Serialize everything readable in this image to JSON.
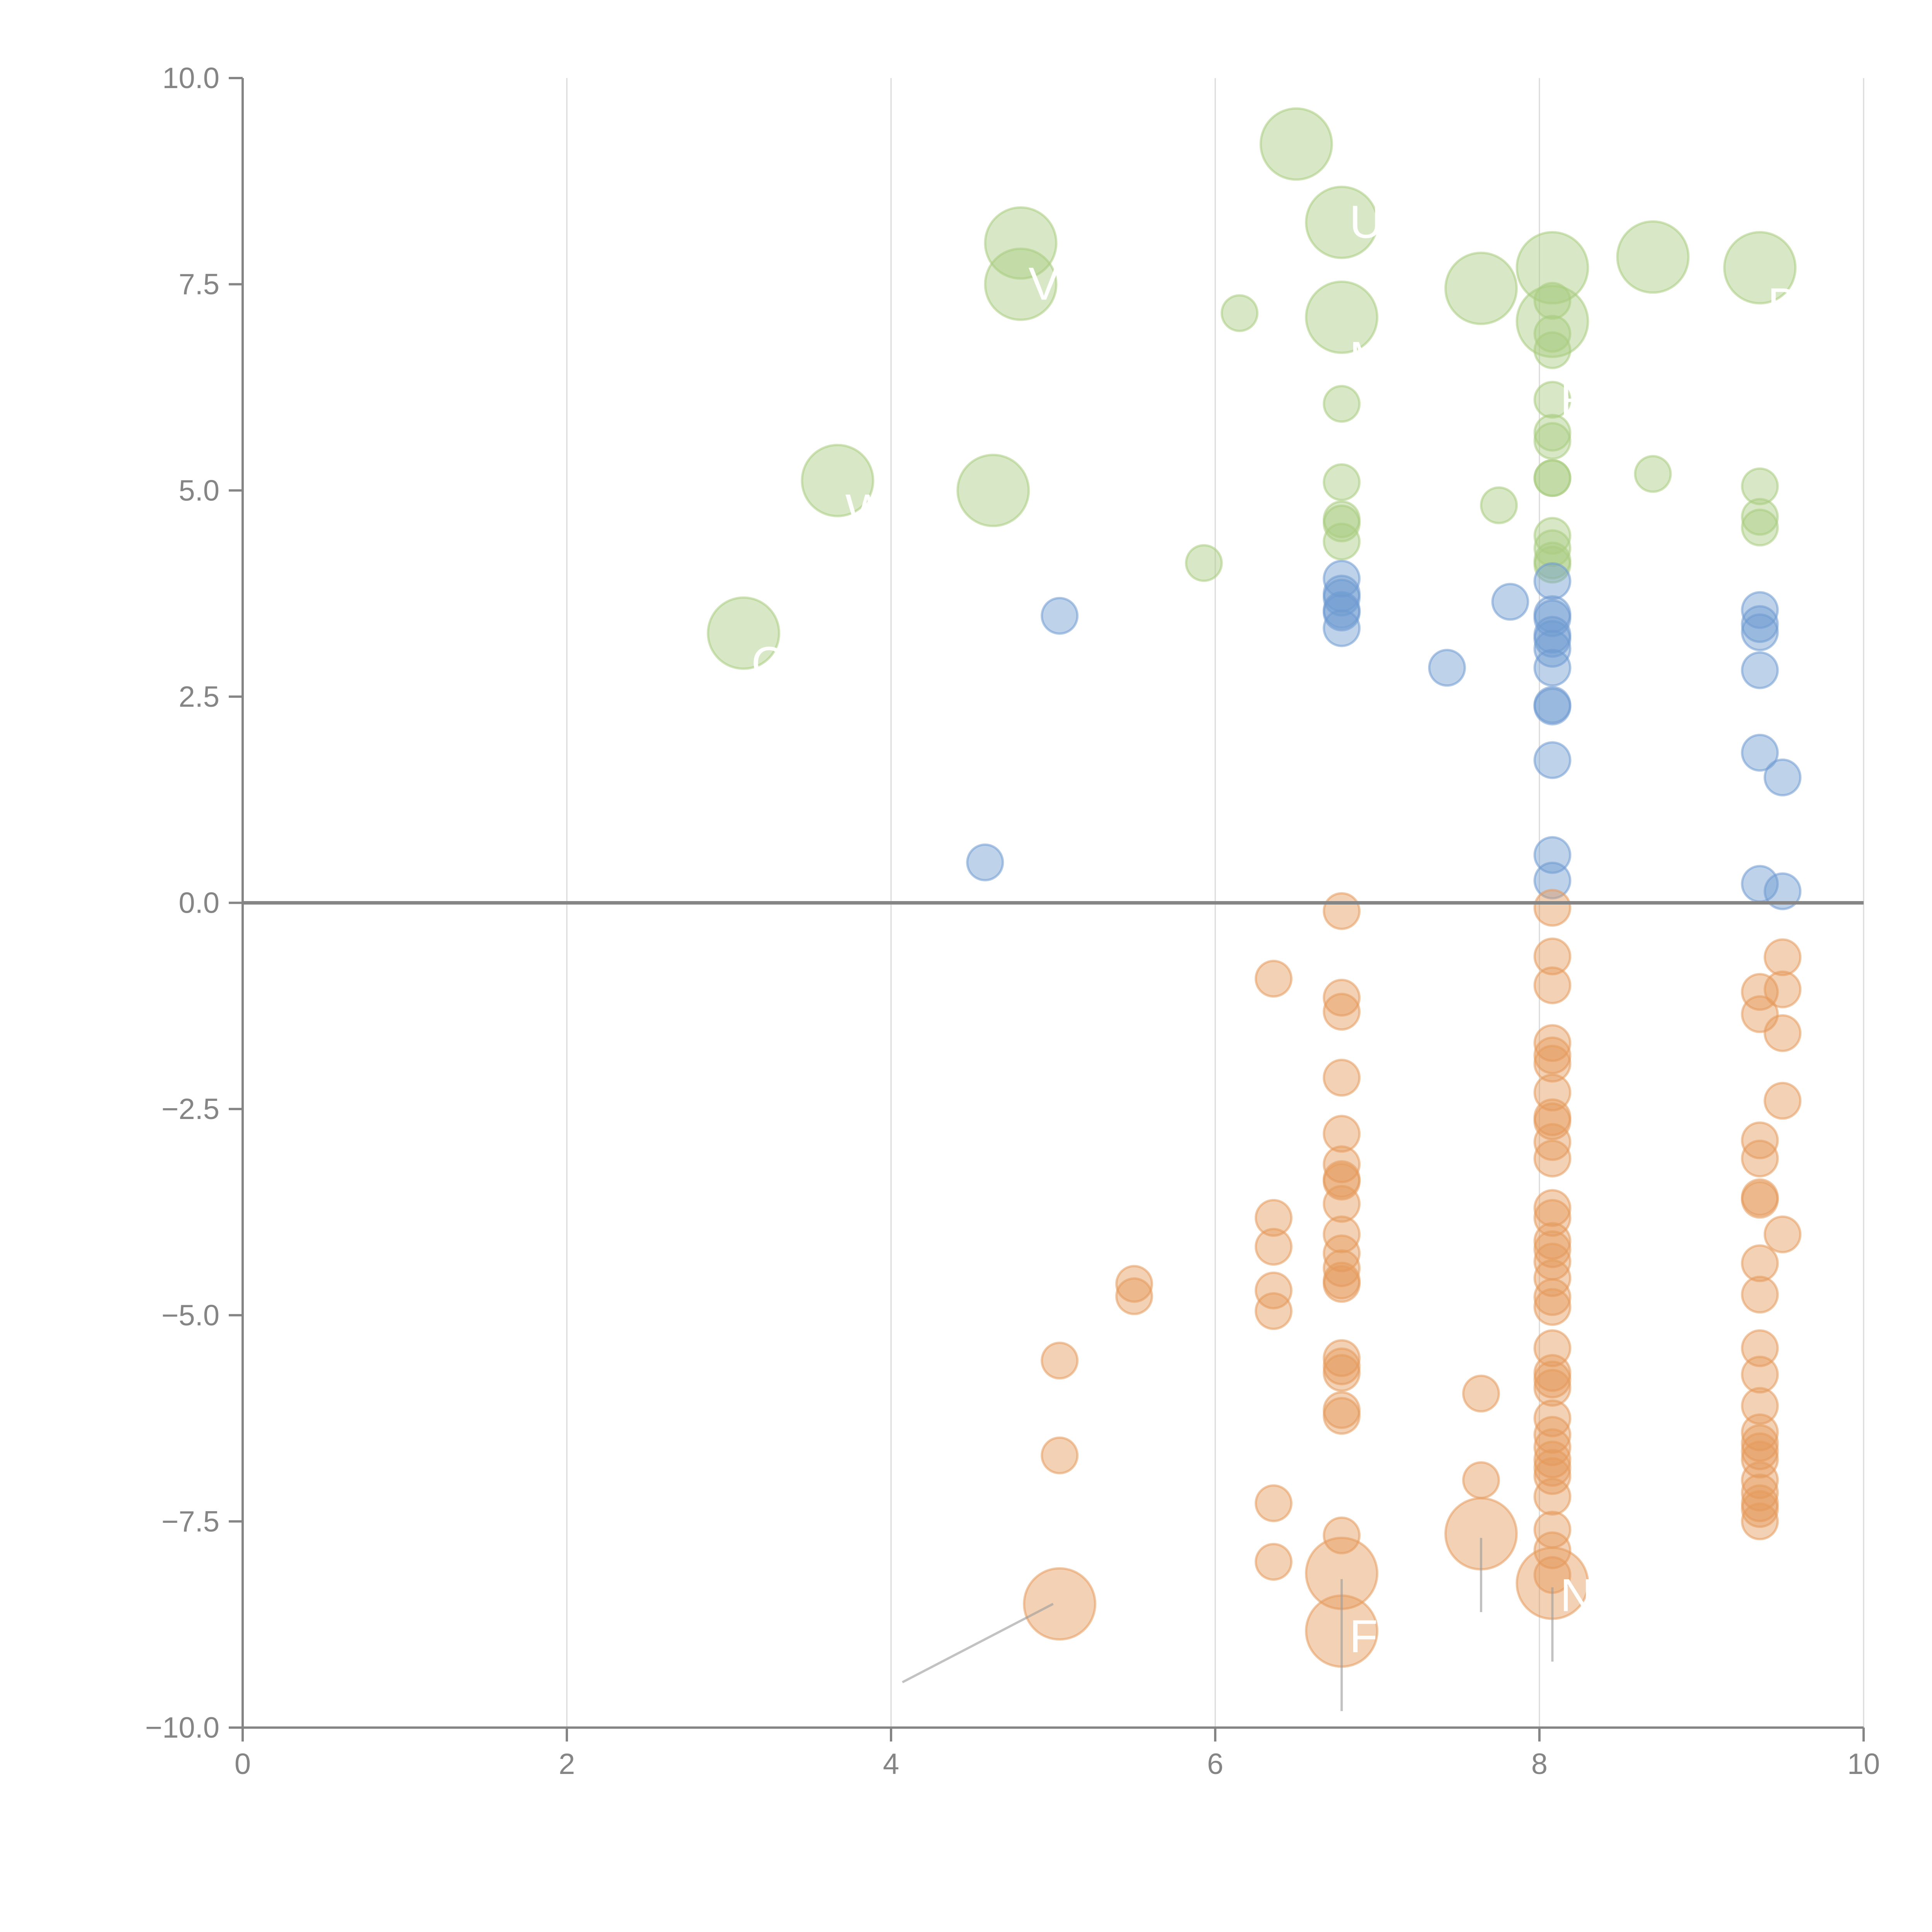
{
  "chart_data": {
    "type": "scatter",
    "title": "",
    "xlabel": "",
    "ylabel": "",
    "xlim": [
      0,
      10
    ],
    "ylim": [
      -10,
      10
    ],
    "grid": "vertical",
    "x_ticks": [
      "0",
      "2",
      "4",
      "6",
      "8",
      "10"
    ],
    "x_tick_values": [
      0,
      2,
      4,
      6,
      8,
      10
    ],
    "y_ticks": [
      "10.0",
      "7.5",
      "5.0",
      "2.5",
      "0.0",
      "−2.5",
      "−5.0",
      "−7.5",
      "−10.0"
    ],
    "y_tick_values": [
      10,
      7.5,
      5,
      2.5,
      0,
      -2.5,
      -5,
      -7.5,
      -10
    ],
    "colors": {
      "green": "#a9cc80",
      "blue": "#6f9bd1",
      "orange": "#e59a5c",
      "axis": "#858585",
      "grid": "#d9d9d9"
    },
    "series": [
      {
        "name": "green",
        "color": "#a9cc80",
        "points": [
          [
            6.5,
            9.2,
            2
          ],
          [
            6.78,
            8.25,
            2
          ],
          [
            4.8,
            8.0,
            2
          ],
          [
            4.8,
            7.5,
            2
          ],
          [
            6.15,
            7.15,
            1
          ],
          [
            6.78,
            7.1,
            2
          ],
          [
            7.64,
            7.45,
            2
          ],
          [
            8.08,
            7.7,
            2
          ],
          [
            8.08,
            7.05,
            2
          ],
          [
            8.7,
            7.83,
            2
          ],
          [
            9.36,
            7.7,
            2
          ],
          [
            8.08,
            7.3,
            1
          ],
          [
            8.08,
            6.9,
            1
          ],
          [
            8.08,
            6.7,
            1
          ],
          [
            8.08,
            6.1,
            1
          ],
          [
            8.08,
            5.7,
            1
          ],
          [
            8.08,
            5.6,
            1
          ],
          [
            8.08,
            5.15,
            1
          ],
          [
            8.08,
            5.15,
            1
          ],
          [
            8.08,
            4.45,
            1
          ],
          [
            8.08,
            4.3,
            1
          ],
          [
            8.08,
            4.15,
            1
          ],
          [
            8.08,
            4.1,
            1
          ],
          [
            6.78,
            6.05,
            1
          ],
          [
            6.78,
            5.1,
            1
          ],
          [
            6.78,
            4.65,
            1
          ],
          [
            6.78,
            4.6,
            1
          ],
          [
            6.78,
            4.38,
            1
          ],
          [
            7.75,
            4.82,
            1
          ],
          [
            8.7,
            5.2,
            1
          ],
          [
            9.36,
            5.05,
            1
          ],
          [
            9.36,
            4.68,
            1
          ],
          [
            9.36,
            4.55,
            1
          ],
          [
            3.67,
            5.12,
            2
          ],
          [
            4.63,
            5.0,
            2
          ],
          [
            5.93,
            4.12,
            1
          ],
          [
            3.09,
            3.27,
            2
          ]
        ]
      },
      {
        "name": "blue",
        "color": "#6f9bd1",
        "points": [
          [
            5.04,
            3.48,
            1
          ],
          [
            4.58,
            0.49,
            1
          ],
          [
            6.78,
            3.93,
            1
          ],
          [
            6.78,
            3.75,
            1
          ],
          [
            6.78,
            3.7,
            1
          ],
          [
            6.78,
            3.55,
            1
          ],
          [
            6.78,
            3.52,
            1
          ],
          [
            6.78,
            3.33,
            1
          ],
          [
            7.43,
            2.85,
            1
          ],
          [
            7.82,
            3.65,
            1
          ],
          [
            8.08,
            3.9,
            1
          ],
          [
            8.08,
            3.5,
            1
          ],
          [
            8.08,
            3.45,
            1
          ],
          [
            8.08,
            3.25,
            1
          ],
          [
            8.08,
            3.2,
            1
          ],
          [
            8.08,
            3.08,
            1
          ],
          [
            8.08,
            2.85,
            1
          ],
          [
            8.08,
            2.4,
            1
          ],
          [
            8.08,
            2.38,
            1
          ],
          [
            8.08,
            1.73,
            1
          ],
          [
            8.08,
            0.58,
            1
          ],
          [
            8.08,
            0.27,
            1
          ],
          [
            9.36,
            3.55,
            1
          ],
          [
            9.36,
            3.38,
            1
          ],
          [
            9.36,
            3.28,
            1
          ],
          [
            9.36,
            2.82,
            1
          ],
          [
            9.36,
            1.82,
            1
          ],
          [
            9.5,
            1.52,
            1
          ],
          [
            9.36,
            0.23,
            1
          ],
          [
            9.5,
            0.14,
            1
          ]
        ]
      },
      {
        "name": "orange",
        "color": "#e59a5c",
        "points": [
          [
            6.78,
            -0.1,
            1
          ],
          [
            6.36,
            -0.92,
            1
          ],
          [
            6.78,
            -1.15,
            1
          ],
          [
            6.78,
            -1.32,
            1
          ],
          [
            6.78,
            -2.12,
            1
          ],
          [
            6.78,
            -2.8,
            1
          ],
          [
            6.78,
            -3.17,
            1
          ],
          [
            6.78,
            -3.35,
            1
          ],
          [
            6.78,
            -3.38,
            1
          ],
          [
            6.78,
            -3.65,
            1
          ],
          [
            6.78,
            -4.02,
            1
          ],
          [
            6.78,
            -4.25,
            1
          ],
          [
            6.78,
            -4.43,
            1
          ],
          [
            6.78,
            -4.58,
            1
          ],
          [
            6.78,
            -4.62,
            1
          ],
          [
            6.78,
            -5.52,
            1
          ],
          [
            6.78,
            -5.62,
            1
          ],
          [
            6.78,
            -5.7,
            1
          ],
          [
            6.78,
            -6.15,
            1
          ],
          [
            6.78,
            -6.22,
            1
          ],
          [
            6.78,
            -7.67,
            1
          ],
          [
            6.78,
            -8.13,
            2
          ],
          [
            6.78,
            -8.83,
            2
          ],
          [
            6.36,
            -3.82,
            1
          ],
          [
            6.36,
            -4.17,
            1
          ],
          [
            6.36,
            -4.7,
            1
          ],
          [
            6.36,
            -4.95,
            1
          ],
          [
            6.36,
            -7.28,
            1
          ],
          [
            6.36,
            -7.99,
            1
          ],
          [
            5.5,
            -4.62,
            1
          ],
          [
            5.5,
            -4.77,
            1
          ],
          [
            5.04,
            -5.55,
            1
          ],
          [
            5.04,
            -6.7,
            1
          ],
          [
            5.04,
            -8.5,
            2
          ],
          [
            7.64,
            -5.95,
            1
          ],
          [
            7.64,
            -7.0,
            1
          ],
          [
            7.64,
            -7.65,
            2
          ],
          [
            8.08,
            -0.06,
            1
          ],
          [
            8.08,
            -0.65,
            1
          ],
          [
            8.08,
            -1.0,
            1
          ],
          [
            8.08,
            -1.7,
            1
          ],
          [
            8.08,
            -1.85,
            1
          ],
          [
            8.08,
            -1.95,
            1
          ],
          [
            8.08,
            -2.3,
            1
          ],
          [
            8.08,
            -2.6,
            1
          ],
          [
            8.08,
            -2.65,
            1
          ],
          [
            8.08,
            -2.9,
            1
          ],
          [
            8.08,
            -3.1,
            1
          ],
          [
            8.08,
            -3.7,
            1
          ],
          [
            8.08,
            -3.82,
            1
          ],
          [
            8.08,
            -4.1,
            1
          ],
          [
            8.08,
            -4.2,
            1
          ],
          [
            8.08,
            -4.35,
            1
          ],
          [
            8.08,
            -4.55,
            1
          ],
          [
            8.08,
            -4.78,
            1
          ],
          [
            8.08,
            -4.9,
            1
          ],
          [
            8.08,
            -5.4,
            1
          ],
          [
            8.08,
            -5.7,
            1
          ],
          [
            8.08,
            -5.78,
            1
          ],
          [
            8.08,
            -5.88,
            1
          ],
          [
            8.08,
            -6.25,
            1
          ],
          [
            8.08,
            -6.45,
            1
          ],
          [
            8.08,
            -6.6,
            1
          ],
          [
            8.08,
            -6.75,
            1
          ],
          [
            8.08,
            -6.85,
            1
          ],
          [
            8.08,
            -6.95,
            1
          ],
          [
            8.08,
            -7.2,
            1
          ],
          [
            8.08,
            -7.6,
            1
          ],
          [
            8.08,
            -7.85,
            1
          ],
          [
            8.08,
            -8.15,
            1
          ],
          [
            8.08,
            -8.25,
            2
          ],
          [
            9.36,
            -1.08,
            1
          ],
          [
            9.5,
            -0.66,
            1
          ],
          [
            9.5,
            -1.05,
            1
          ],
          [
            9.36,
            -1.35,
            1
          ],
          [
            9.5,
            -1.58,
            1
          ],
          [
            9.5,
            -2.4,
            1
          ],
          [
            9.36,
            -2.88,
            1
          ],
          [
            9.36,
            -3.1,
            1
          ],
          [
            9.36,
            -3.57,
            1
          ],
          [
            9.36,
            -3.6,
            1
          ],
          [
            9.5,
            -4.02,
            1
          ],
          [
            9.36,
            -4.37,
            1
          ],
          [
            9.36,
            -4.75,
            1
          ],
          [
            9.36,
            -5.4,
            1
          ],
          [
            9.36,
            -5.72,
            1
          ],
          [
            9.36,
            -6.1,
            1
          ],
          [
            9.36,
            -6.42,
            1
          ],
          [
            9.36,
            -6.55,
            1
          ],
          [
            9.36,
            -6.65,
            1
          ],
          [
            9.36,
            -6.75,
            1
          ],
          [
            9.36,
            -7.0,
            1
          ],
          [
            9.36,
            -7.15,
            1
          ],
          [
            9.36,
            -7.28,
            1
          ],
          [
            9.36,
            -7.35,
            1
          ],
          [
            9.36,
            -7.5,
            1
          ]
        ]
      }
    ],
    "annotations": [
      {
        "text": "U",
        "x": 6.78,
        "y": 8.25,
        "series": "green"
      },
      {
        "text": "V",
        "x": 4.8,
        "y": 7.5,
        "series": "green"
      },
      {
        "text": "M",
        "x": 6.78,
        "y": 6.6,
        "series": "green"
      },
      {
        "text": "R",
        "x": 8.08,
        "y": 6.1,
        "series": "green"
      },
      {
        "text": "DT",
        "x": 9.36,
        "y": 7.25,
        "series": "green"
      },
      {
        "text": "W",
        "x": 3.67,
        "y": 4.75,
        "series": "green"
      },
      {
        "text": "C",
        "x": 3.09,
        "y": 2.9,
        "series": "green"
      },
      {
        "text": "F",
        "x": 6.78,
        "y": -8.9,
        "series": "orange"
      },
      {
        "text": "NC",
        "x": 8.08,
        "y": -8.4,
        "series": "orange"
      }
    ],
    "leader_lines": [
      [
        5.0,
        -8.5,
        4.07,
        -9.45
      ],
      [
        6.78,
        -8.2,
        6.78,
        -9.8
      ],
      [
        7.64,
        -7.7,
        7.64,
        -8.6
      ],
      [
        8.08,
        -8.3,
        8.08,
        -9.2
      ]
    ]
  }
}
